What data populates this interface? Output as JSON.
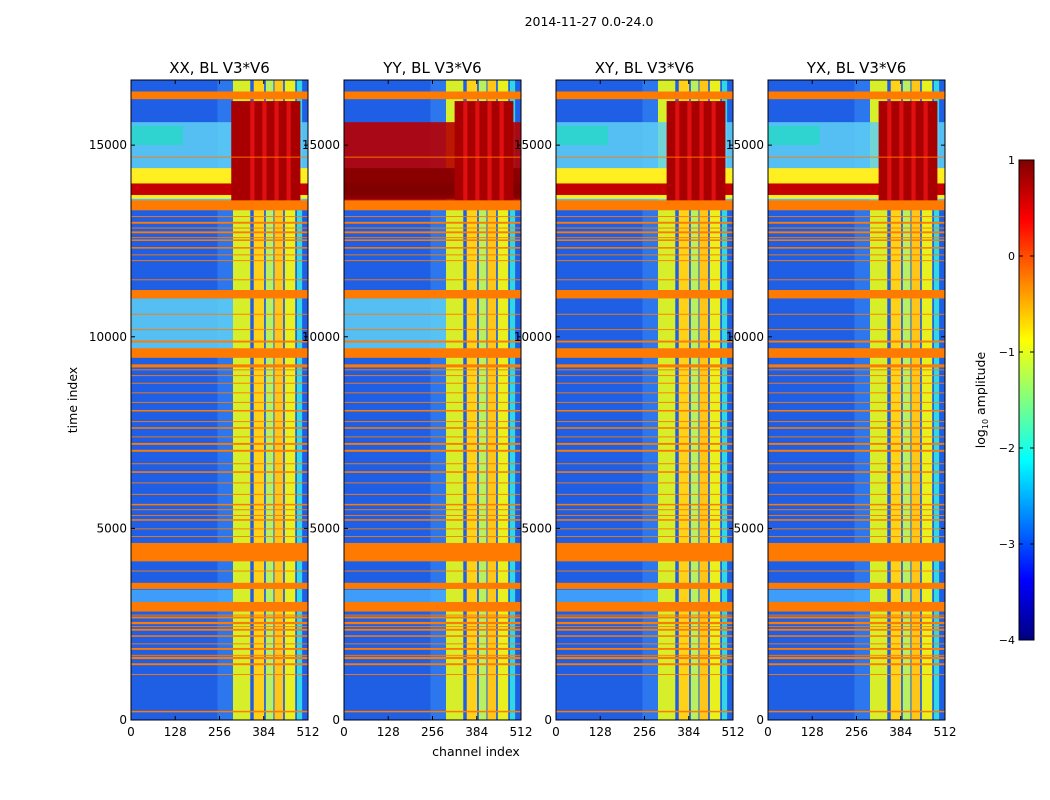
{
  "figure_title": "2014-11-27 0.0-24.0",
  "colorbar": {
    "label": "log",
    "label_sub": "10",
    "label_tail": " amplitude",
    "min": -4,
    "max": 1,
    "ticks": [
      "1",
      "0",
      "−1",
      "−2",
      "−3",
      "−4"
    ],
    "colors": [
      "#800000",
      "#ff0000",
      "#ff8000",
      "#ffff00",
      "#80ff80",
      "#00ffff",
      "#0080ff",
      "#0000ff",
      "#000080"
    ]
  },
  "chart_data": {
    "type": "heatmap",
    "title": "2014-11-27 0.0-24.0",
    "xlabel": "channel index",
    "ylabel": "time index",
    "xlim": [
      0,
      512
    ],
    "ylim": [
      0,
      16700
    ],
    "x_ticks": [
      "0",
      "128",
      "256",
      "384",
      "512"
    ],
    "y_ticks": [
      "0",
      "5000",
      "10000",
      "15000"
    ],
    "colorbar_label": "log10 amplitude",
    "colorbar_range": [
      -4,
      1
    ],
    "panels": [
      {
        "title": "XX, BL V3*V6"
      },
      {
        "title": "YY, BL V3*V6"
      },
      {
        "title": "XY, BL V3*V6"
      },
      {
        "title": "YX, BL V3*V6"
      }
    ],
    "features": {
      "flagged_time_bands": [
        [
          200,
          240
        ],
        [
          1430,
          1480
        ],
        [
          1590,
          1650
        ],
        [
          1830,
          1880
        ],
        [
          2170,
          2210
        ],
        [
          2330,
          2380
        ],
        [
          2500,
          2560
        ],
        [
          2650,
          2700
        ],
        [
          2830,
          3080
        ],
        [
          3420,
          3580
        ],
        [
          4140,
          4620
        ],
        [
          5200,
          5240
        ],
        [
          5600,
          5640
        ],
        [
          6450,
          6490
        ],
        [
          7000,
          7050
        ],
        [
          7180,
          7230
        ],
        [
          7600,
          7640
        ],
        [
          8050,
          8090
        ],
        [
          9200,
          9280
        ],
        [
          9450,
          9700
        ],
        [
          9850,
          9900
        ],
        [
          11000,
          11220
        ],
        [
          12300,
          12340
        ],
        [
          12500,
          12540
        ],
        [
          12700,
          12750
        ],
        [
          12950,
          13000
        ],
        [
          13300,
          13560
        ],
        [
          16200,
          16400
        ]
      ],
      "high_amp_channel_bands": [
        [
          295,
          345
        ],
        [
          355,
          385
        ],
        [
          390,
          412
        ],
        [
          415,
          440
        ],
        [
          445,
          475
        ],
        [
          480,
          495
        ]
      ]
    }
  }
}
